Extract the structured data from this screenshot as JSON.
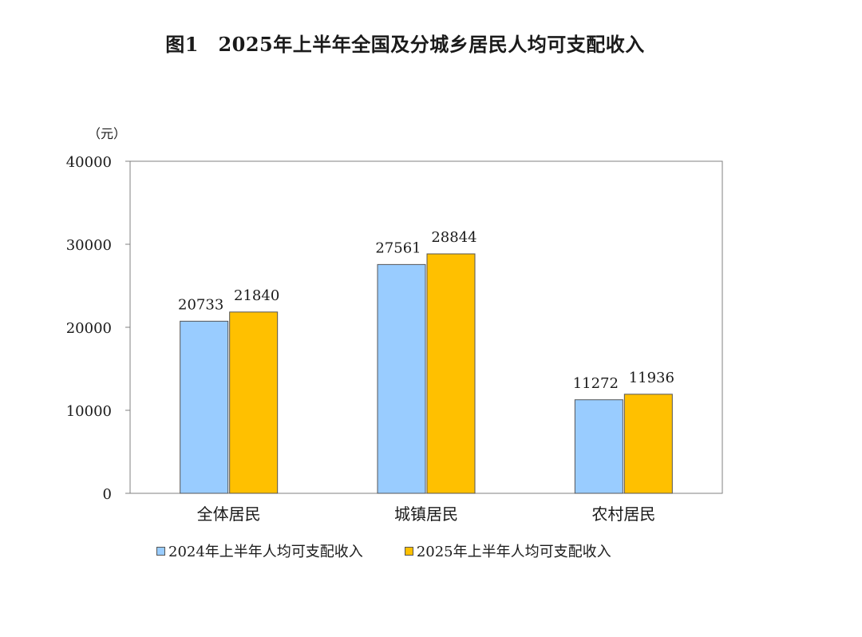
{
  "title": "图1　2025年上半年全国及分城乡居民人均可支配收入",
  "colors": {
    "series_2024": "#99ccff",
    "series_2025": "#ffc000",
    "axis": "#808080"
  },
  "chart_data": {
    "type": "bar",
    "title": "图1　2025年上半年全国及分城乡居民人均可支配收入",
    "ylabel": "（元）",
    "xlabel": "",
    "ylim": [
      0,
      40000
    ],
    "yticks": [
      0,
      10000,
      20000,
      30000,
      40000
    ],
    "categories": [
      "全体居民",
      "城镇居民",
      "农村居民"
    ],
    "series": [
      {
        "name": "2024年上半年人均可支配收入",
        "values": [
          20733,
          27561,
          11272
        ]
      },
      {
        "name": "2025年上半年人均可支配收入",
        "values": [
          21840,
          28844,
          11936
        ]
      }
    ],
    "data_labels": true,
    "legend": "bottom",
    "grid": false
  }
}
